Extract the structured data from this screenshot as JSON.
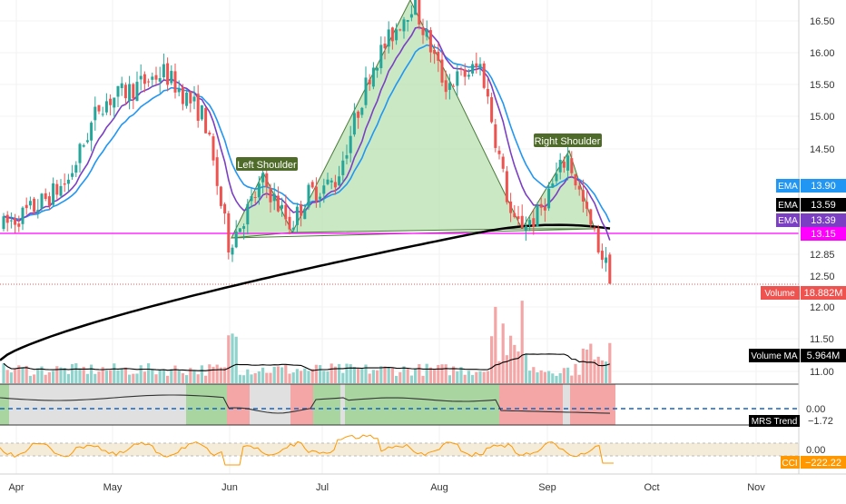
{
  "colors": {
    "up": "#26a69a",
    "down": "#ef5350",
    "ema_short": "#7b3fc4",
    "ema_mid": "#2196f3",
    "ema_long": "#000000",
    "pattern_fill": "#b8e0b0",
    "pattern_line": "#4a7a3a",
    "support_line": "#ff00ff",
    "price_line": "#ef5350",
    "volume_up": "#8fd3cc",
    "volume_down": "#f4a6a6",
    "mrs_line": "#333333",
    "mrs_zero": "#1565c0",
    "cci_line": "#ff9800",
    "label_pattern_bg": "#4f6b2a"
  },
  "xaxis": {
    "labels": [
      "Apr",
      "May",
      "Jun",
      "Jul",
      "Aug",
      "Sep",
      "Oct",
      "Nov"
    ]
  },
  "price_axis": {
    "ticks": [
      "16.50",
      "16.00",
      "15.50",
      "15.00",
      "14.50",
      "12.85",
      "12.50",
      "12.00",
      "11.50",
      "11.00"
    ]
  },
  "pattern_labels": {
    "left": "Left Shoulder",
    "right": "Right Shoulder"
  },
  "tags": {
    "ema_mid": {
      "name": "EMA",
      "value": "13.90"
    },
    "ema_long": {
      "name": "EMA",
      "value": "13.59"
    },
    "ema_short": {
      "name": "EMA",
      "value": "13.39"
    },
    "support": {
      "value": "13.15"
    },
    "volume": {
      "name": "Volume",
      "value": "18.882M"
    },
    "volume_ma": {
      "name": "Volume MA",
      "value": "5.964M"
    },
    "mrs": {
      "name": "MRS Trend",
      "value": "−1.72",
      "zero": "0.00"
    },
    "cci": {
      "name": "CCI",
      "value": "−222.22",
      "zero": "0.00"
    }
  },
  "chart_data": {
    "type": "candlestick",
    "x_labels": [
      "Apr",
      "May",
      "Jun",
      "Jul",
      "Aug",
      "Sep",
      "Oct",
      "Nov"
    ],
    "price_anchors": [
      [
        "Apr 1",
        13.3
      ],
      [
        "Apr 10",
        13.6
      ],
      [
        "Apr 20",
        14.0
      ],
      [
        "Apr 30",
        15.2
      ],
      [
        "May 10",
        15.4
      ],
      [
        "May 20",
        15.7
      ],
      [
        "May 28",
        15.0
      ],
      [
        "Jun 1",
        13.0
      ],
      [
        "Jun 8",
        14.0
      ],
      [
        "Jun 18",
        13.3
      ],
      [
        "Jun 25",
        13.8
      ],
      [
        "Jul 5",
        14.0
      ],
      [
        "Jul 15",
        15.8
      ],
      [
        "Jul 28",
        16.8
      ],
      [
        "Aug 3",
        15.5
      ],
      [
        "Aug 12",
        15.8
      ],
      [
        "Aug 22",
        13.3
      ],
      [
        "Aug 30",
        13.4
      ],
      [
        "Sep 8",
        14.4
      ],
      [
        "Sep 14",
        13.3
      ],
      [
        "Sep 20",
        12.4
      ]
    ],
    "ema_mid_last": 13.9,
    "ema_long_last": 13.59,
    "ema_short_last": 13.39,
    "neckline": 13.15,
    "volume_last": "18.882M",
    "volume_ma_last": "5.964M",
    "mrs_trend_last": -1.72,
    "cci_last": -222.22,
    "annotations": [
      "Left Shoulder",
      "Right Shoulder"
    ]
  }
}
